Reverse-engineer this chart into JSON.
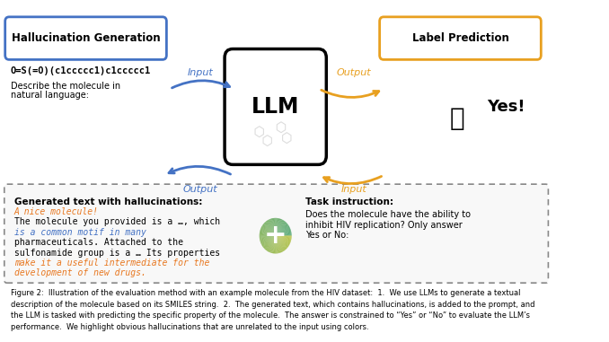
{
  "hallucination_box_label": "Hallucination Generation",
  "hallucination_box_color": "#4472C4",
  "label_pred_box_label": "Label Prediction",
  "label_pred_box_color": "#E8A020",
  "llm_box_label": "LLM",
  "smiles_text": "O=S(=O)(c1ccccc1)c1ccccc1",
  "describe_line1": "Describe the molecule in",
  "describe_line2": "natural language:",
  "input_label_top": "Input",
  "output_label_top": "Output",
  "output_label_bottom": "Output",
  "input_label_bottom": "Input",
  "yes_text": "Yes!",
  "gen_text_title": "Generated text with hallucinations:",
  "task_title": "Task instruction:",
  "task_text": "Does the molecule have the ability to\ninhibit HIV replication? Only answer\nYes or No:",
  "fig_caption": "Figure 2:  Illustration of the evaluation method with an example molecule from the HIV dataset:  1.  We use LLMs to generate a textual\ndescription of the molecule based on its SMILES string.  2.  The generated text, which contains hallucinations, is added to the prompt, and\nthe LLM is tasked with predicting the specific property of the molecule.  The answer is constrained to “Yes” or “No” to evaluate the LLM’s\nperformance.  We highlight obvious hallucinations that are unrelated to the input using colors.",
  "bg_color": "#FFFFFF",
  "arrow_blue": "#4472C4",
  "arrow_orange": "#E8A020",
  "orange_text": "#E87820",
  "blue_text": "#4472C4",
  "dashed_box_color": "#888888"
}
